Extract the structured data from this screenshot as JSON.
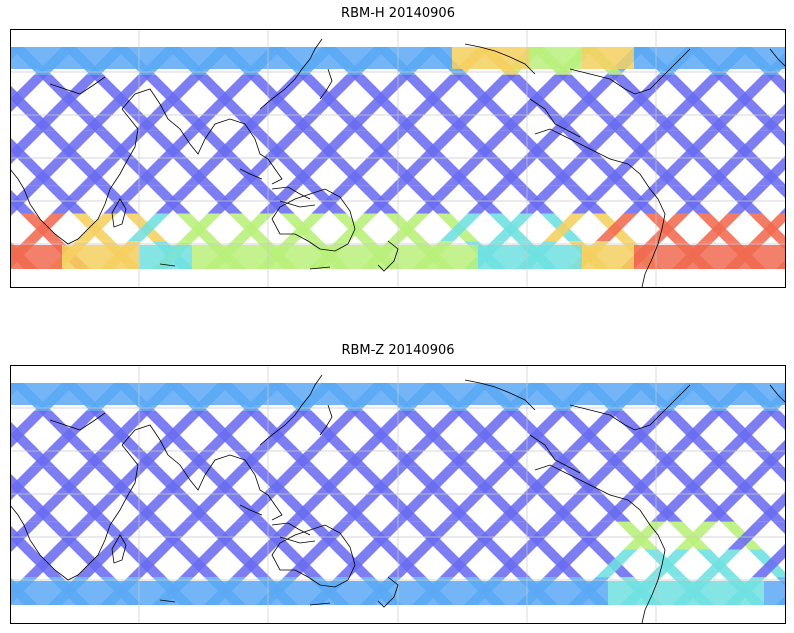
{
  "panels": [
    {
      "title": "RBM-H 20140906",
      "band_color": "#6b7cf5",
      "hot_zones": "south-polar-high"
    },
    {
      "title": "RBM-Z 20140906",
      "band_color": "#6b7cf5",
      "hot_zones": "south-atlantic-moderate"
    }
  ],
  "colors": {
    "low": "#6a6cf0",
    "mid_low": "#5aa8f5",
    "mid": "#70e0e0",
    "mid_high": "#b8f07a",
    "high": "#f5d060",
    "very_high": "#f06a50",
    "coastline": "#000000",
    "grid": "#c8c8c8"
  }
}
